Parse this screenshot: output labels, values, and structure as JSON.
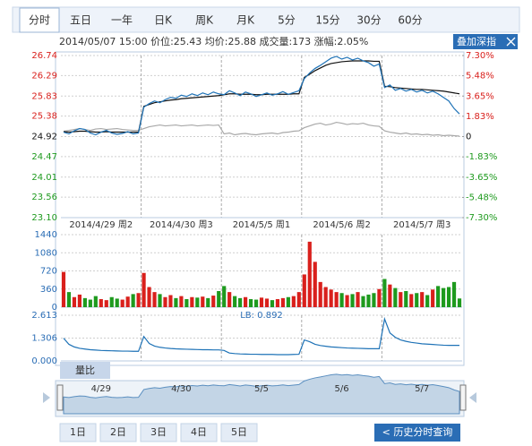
{
  "tabs": [
    "分时",
    "五日",
    "一年",
    "日K",
    "周K",
    "月K",
    "5分",
    "15分",
    "30分",
    "60分"
  ],
  "info": "2014/05/07 15:00 价位:25.43 均价:25.88 成交量:173 涨幅:2.05%",
  "overlay_button": "叠加深指",
  "indicator_tab": "量比",
  "navigator": {
    "labels": [
      "4/29",
      "4/30",
      "5/5",
      "5/6",
      "5/7"
    ]
  },
  "range_buttons": [
    "1日",
    "2日",
    "3日",
    "4日",
    "5日"
  ],
  "history_button": "< 历史分时查询",
  "chart_data": [
    {
      "type": "line",
      "day_labels": [
        "2014/4/29 周2",
        "2014/4/30 周3",
        "2014/5/5 周1",
        "2014/5/6 周2",
        "2014/5/7 周3"
      ],
      "ylim": [
        23.1,
        26.74
      ],
      "yticks": [
        26.74,
        26.29,
        25.83,
        25.38,
        24.92,
        24.47,
        24.01,
        23.56,
        {
          "value": 23.1,
          "label": "23.10"
        }
      ],
      "y2lim": [
        -7.3,
        7.3
      ],
      "y2ticks": [
        {
          "value": 7.3,
          "label": "7.30%"
        },
        {
          "value": 5.48,
          "label": "5.48%"
        },
        {
          "value": 3.65,
          "label": "3.65%"
        },
        {
          "value": 1.83,
          "label": "1.83%"
        },
        0,
        {
          "value": -1.83,
          "label": "-1.83%"
        },
        {
          "value": -3.65,
          "label": "-3.65%"
        },
        {
          "value": -5.48,
          "label": "-5.48%"
        },
        {
          "value": -7.3,
          "label": "-7.30%"
        }
      ],
      "grid": true,
      "series": [
        {
          "color": "#1f73b7",
          "values": [
            25.02,
            24.98,
            25.05,
            25.1,
            25.08,
            25.0,
            24.96,
            25.02,
            25.06,
            25.0,
            24.97,
            24.99,
            25.03,
            24.98,
            25.0,
            25.58,
            25.66,
            25.72,
            25.68,
            25.75,
            25.8,
            25.78,
            25.85,
            25.82,
            25.88,
            25.84,
            25.9,
            25.86,
            25.92,
            25.88,
            25.86,
            25.95,
            25.9,
            25.84,
            25.92,
            25.88,
            25.82,
            25.86,
            25.9,
            25.85,
            25.88,
            25.93,
            25.87,
            25.91,
            25.95,
            26.22,
            26.35,
            26.45,
            26.52,
            26.6,
            26.68,
            26.72,
            26.66,
            26.7,
            26.64,
            26.68,
            26.62,
            26.58,
            26.5,
            26.55,
            26.02,
            26.08,
            25.96,
            26.0,
            25.94,
            25.98,
            25.92,
            25.96,
            25.9,
            25.94,
            25.88,
            25.8,
            25.72,
            25.55,
            25.43
          ]
        },
        {
          "color": "#111111",
          "values": [
            25.03,
            25.02,
            25.03,
            25.04,
            25.04,
            25.03,
            25.02,
            25.02,
            25.03,
            25.02,
            25.02,
            25.02,
            25.02,
            25.02,
            25.02,
            25.6,
            25.64,
            25.68,
            25.7,
            25.72,
            25.74,
            25.75,
            25.77,
            25.78,
            25.79,
            25.8,
            25.81,
            25.82,
            25.83,
            25.84,
            25.86,
            25.88,
            25.88,
            25.87,
            25.87,
            25.87,
            25.86,
            25.86,
            25.87,
            25.87,
            25.87,
            25.87,
            25.87,
            25.88,
            25.88,
            26.25,
            26.32,
            26.4,
            26.46,
            26.52,
            26.56,
            26.58,
            26.6,
            26.61,
            26.62,
            26.62,
            26.62,
            26.62,
            26.61,
            26.61,
            26.05,
            26.04,
            26.02,
            26.01,
            26.0,
            25.99,
            25.98,
            25.98,
            25.97,
            25.96,
            25.95,
            25.94,
            25.92,
            25.9,
            25.88
          ]
        },
        {
          "color": "#a8a8a8",
          "values": [
            25.04,
            25.06,
            25.08,
            25.1,
            25.08,
            25.06,
            25.09,
            25.1,
            25.08,
            25.09,
            25.1,
            25.08,
            25.07,
            25.06,
            25.06,
            25.1,
            25.14,
            25.16,
            25.18,
            25.16,
            25.17,
            25.18,
            25.16,
            25.17,
            25.18,
            25.16,
            25.17,
            25.18,
            25.17,
            25.18,
            24.98,
            25.0,
            24.96,
            24.98,
            24.99,
            24.97,
            24.96,
            24.98,
            24.99,
            25.0,
            24.98,
            25.01,
            25.02,
            25.04,
            25.05,
            25.12,
            25.16,
            25.2,
            25.22,
            25.18,
            25.2,
            25.24,
            25.22,
            25.19,
            25.21,
            25.2,
            25.22,
            25.18,
            25.16,
            25.15,
            25.05,
            25.02,
            25.0,
            24.98,
            25.0,
            24.97,
            24.98,
            24.96,
            24.97,
            24.95,
            24.96,
            24.94,
            24.95,
            24.94,
            24.93
          ]
        }
      ]
    },
    {
      "type": "bar",
      "ylim": [
        0,
        1440
      ],
      "yticks": [
        1440,
        1080,
        720,
        360,
        0
      ],
      "grid": true,
      "up_color": "#d9201c",
      "down_color": "#1e9a1e",
      "values": [
        700,
        300,
        200,
        250,
        180,
        150,
        220,
        160,
        140,
        200,
        170,
        150,
        210,
        260,
        280,
        680,
        400,
        300,
        260,
        200,
        240,
        180,
        220,
        160,
        200,
        190,
        210,
        180,
        230,
        320,
        420,
        300,
        220,
        180,
        200,
        160,
        150,
        190,
        170,
        140,
        160,
        180,
        200,
        220,
        300,
        650,
        1300,
        900,
        500,
        400,
        350,
        300,
        280,
        240,
        260,
        300,
        220,
        250,
        280,
        360,
        560,
        450,
        380,
        300,
        320,
        260,
        280,
        300,
        240,
        350,
        420,
        380,
        400,
        500,
        173
      ]
    },
    {
      "type": "line",
      "label": "LB: 0.892",
      "ylim": [
        0,
        2.613
      ],
      "yticks": [
        2.613,
        1.306,
        {
          "value": 0,
          "label": "0.000"
        }
      ],
      "grid": true,
      "series": [
        {
          "color": "#1f73b7",
          "values": [
            1.3,
            0.95,
            0.8,
            0.72,
            0.68,
            0.64,
            0.62,
            0.6,
            0.59,
            0.58,
            0.57,
            0.56,
            0.56,
            0.55,
            0.55,
            1.4,
            1.0,
            0.85,
            0.78,
            0.74,
            0.71,
            0.69,
            0.68,
            0.67,
            0.66,
            0.65,
            0.64,
            0.64,
            0.63,
            0.63,
            0.6,
            0.45,
            0.42,
            0.4,
            0.39,
            0.38,
            0.38,
            0.37,
            0.37,
            0.37,
            0.36,
            0.36,
            0.36,
            0.37,
            0.38,
            1.2,
            1.1,
            0.95,
            0.88,
            0.84,
            0.8,
            0.78,
            0.76,
            0.74,
            0.73,
            0.72,
            0.71,
            0.7,
            0.7,
            0.7,
            2.4,
            1.6,
            1.35,
            1.2,
            1.12,
            1.06,
            1.02,
            0.98,
            0.96,
            0.94,
            0.92,
            0.9,
            0.89,
            0.89,
            0.892
          ]
        }
      ]
    }
  ]
}
